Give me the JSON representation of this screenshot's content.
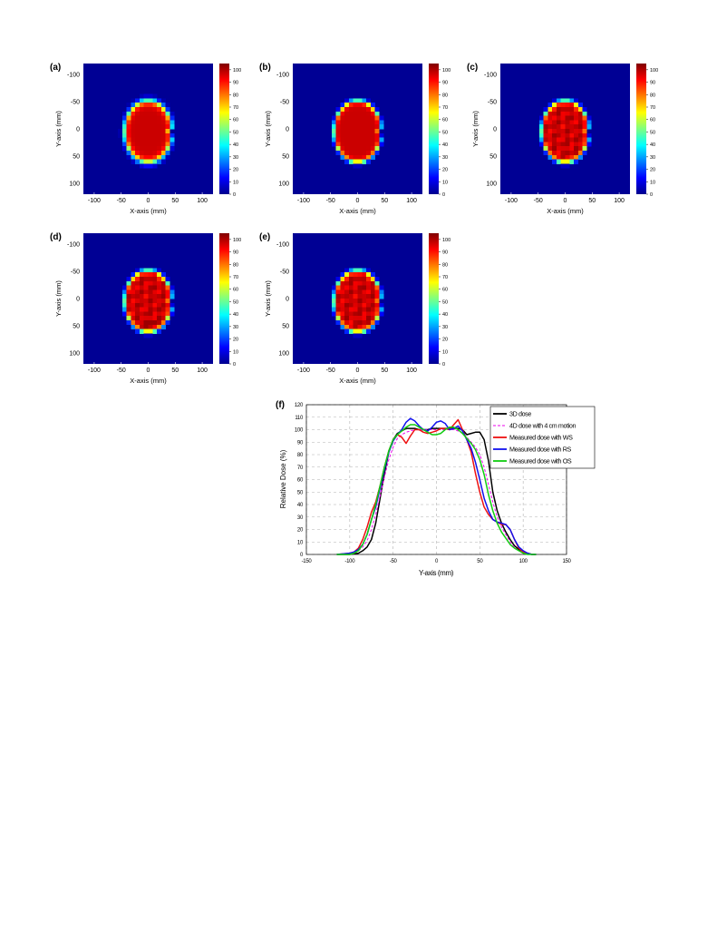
{
  "heatmaps": {
    "colorbar_ticks": [
      "0",
      "10",
      "20",
      "30",
      "40",
      "50",
      "60",
      "70",
      "80",
      "90",
      "100"
    ],
    "xticks": [
      "-100",
      "-50",
      "0",
      "50",
      "100"
    ],
    "yticks": [
      "-100",
      "-50",
      "0",
      "50",
      "100"
    ],
    "xlabel": "X-axis (mm)",
    "ylabel": "Y-axis (mm)",
    "colormap": "jet",
    "panels": [
      {
        "label": "(a)",
        "variant": "planned"
      },
      {
        "label": "(b)",
        "variant": "smooth"
      },
      {
        "label": "(c)",
        "variant": "irregular"
      },
      {
        "label": "(d)",
        "variant": "irregular-low"
      },
      {
        "label": "(e)",
        "variant": "irregular"
      }
    ]
  },
  "chart_data": {
    "type": "line",
    "panel_label": "(f)",
    "xlabel": "Y-axis (mm)",
    "ylabel": "Relative Dose (%)",
    "xlim": [
      -150,
      150
    ],
    "ylim": [
      0,
      120
    ],
    "xticks": [
      "-150",
      "-100",
      "-50",
      "0",
      "50",
      "100",
      "150"
    ],
    "yticks": [
      "0",
      "10",
      "20",
      "30",
      "40",
      "50",
      "60",
      "70",
      "80",
      "90",
      "100",
      "110",
      "120"
    ],
    "grid": true,
    "legend_position": "top-right",
    "series": [
      {
        "name": "3D dose",
        "color": "#000000",
        "dashed": false,
        "x": [
          -115,
          -100,
          -90,
          -85,
          -80,
          -75,
          -70,
          -65,
          -60,
          -55,
          -50,
          -45,
          -40,
          -35,
          -30,
          -25,
          -20,
          -15,
          -10,
          -5,
          0,
          5,
          10,
          15,
          20,
          25,
          30,
          35,
          40,
          45,
          50,
          55,
          60,
          65,
          70,
          75,
          80,
          85,
          90,
          95,
          100,
          105,
          110,
          115
        ],
        "y": [
          0,
          0,
          1,
          3,
          6,
          12,
          25,
          45,
          65,
          82,
          92,
          97,
          99,
          101,
          101,
          101,
          100,
          100,
          100,
          101,
          101,
          101,
          101,
          101,
          101,
          101,
          100,
          96,
          97,
          98,
          98,
          92,
          75,
          50,
          35,
          25,
          18,
          12,
          7,
          4,
          2,
          1,
          0,
          0
        ]
      },
      {
        "name": "4D dose with 4 cm motion",
        "color": "#ee00ee",
        "dashed": true,
        "x": [
          -115,
          -100,
          -95,
          -90,
          -85,
          -80,
          -75,
          -70,
          -65,
          -60,
          -55,
          -50,
          -45,
          -40,
          -35,
          -30,
          -25,
          -20,
          -15,
          -10,
          -5,
          0,
          5,
          10,
          15,
          20,
          25,
          30,
          35,
          40,
          45,
          50,
          55,
          60,
          65,
          70,
          75,
          80,
          85,
          90,
          95,
          100,
          105,
          110,
          115
        ],
        "y": [
          0,
          0,
          1,
          3,
          6,
          11,
          20,
          32,
          47,
          62,
          76,
          86,
          93,
          96,
          98,
          99,
          100,
          100,
          100,
          100,
          100,
          100,
          100,
          100,
          100,
          100,
          99,
          97,
          94,
          90,
          86,
          80,
          70,
          56,
          42,
          30,
          22,
          16,
          10,
          6,
          3,
          2,
          1,
          0,
          0
        ]
      },
      {
        "name": "Measured dose with WS",
        "color": "#ee1111",
        "dashed": false,
        "x": [
          -115,
          -100,
          -95,
          -90,
          -85,
          -80,
          -75,
          -70,
          -65,
          -60,
          -55,
          -50,
          -45,
          -40,
          -35,
          -30,
          -25,
          -20,
          -15,
          -10,
          -5,
          0,
          5,
          10,
          15,
          20,
          25,
          30,
          35,
          40,
          45,
          50,
          55,
          60,
          65,
          70,
          75,
          80,
          85,
          90,
          95,
          100,
          105,
          110,
          115
        ],
        "y": [
          0,
          1,
          2,
          5,
          12,
          22,
          34,
          42,
          55,
          70,
          83,
          92,
          96,
          94,
          89,
          95,
          100,
          100,
          98,
          97,
          98,
          99,
          101,
          101,
          100,
          104,
          108,
          100,
          92,
          82,
          65,
          50,
          38,
          32,
          28,
          26,
          24,
          24,
          20,
          12,
          5,
          2,
          1,
          0,
          0
        ]
      },
      {
        "name": "Measured dose with RS",
        "color": "#1111ee",
        "dashed": false,
        "x": [
          -115,
          -100,
          -95,
          -90,
          -85,
          -80,
          -75,
          -70,
          -65,
          -60,
          -55,
          -50,
          -45,
          -40,
          -35,
          -30,
          -25,
          -20,
          -15,
          -10,
          -5,
          0,
          5,
          10,
          15,
          20,
          25,
          30,
          35,
          40,
          45,
          50,
          55,
          60,
          65,
          70,
          75,
          80,
          85,
          90,
          95,
          100,
          105,
          110,
          115
        ],
        "y": [
          0,
          1,
          2,
          4,
          8,
          16,
          28,
          38,
          53,
          68,
          82,
          91,
          96,
          100,
          106,
          109,
          107,
          103,
          100,
          99,
          102,
          106,
          107,
          105,
          100,
          101,
          103,
          99,
          92,
          85,
          74,
          60,
          45,
          35,
          28,
          26,
          25,
          24,
          20,
          12,
          6,
          3,
          1,
          0,
          0
        ]
      },
      {
        "name": "Measured dose with OS",
        "color": "#11cc11",
        "dashed": false,
        "x": [
          -115,
          -100,
          -95,
          -90,
          -85,
          -80,
          -75,
          -70,
          -65,
          -60,
          -55,
          -50,
          -45,
          -40,
          -35,
          -30,
          -25,
          -20,
          -15,
          -10,
          -5,
          0,
          5,
          10,
          15,
          20,
          25,
          30,
          35,
          40,
          45,
          50,
          55,
          60,
          65,
          70,
          75,
          80,
          85,
          90,
          95,
          100,
          105,
          110,
          115
        ],
        "y": [
          0,
          0,
          1,
          3,
          8,
          16,
          28,
          40,
          55,
          70,
          83,
          92,
          96,
          99,
          102,
          104,
          104,
          102,
          100,
          98,
          96,
          96,
          97,
          100,
          102,
          102,
          100,
          97,
          93,
          89,
          84,
          76,
          64,
          48,
          35,
          25,
          18,
          13,
          8,
          5,
          3,
          1,
          0,
          0,
          0
        ]
      }
    ]
  }
}
